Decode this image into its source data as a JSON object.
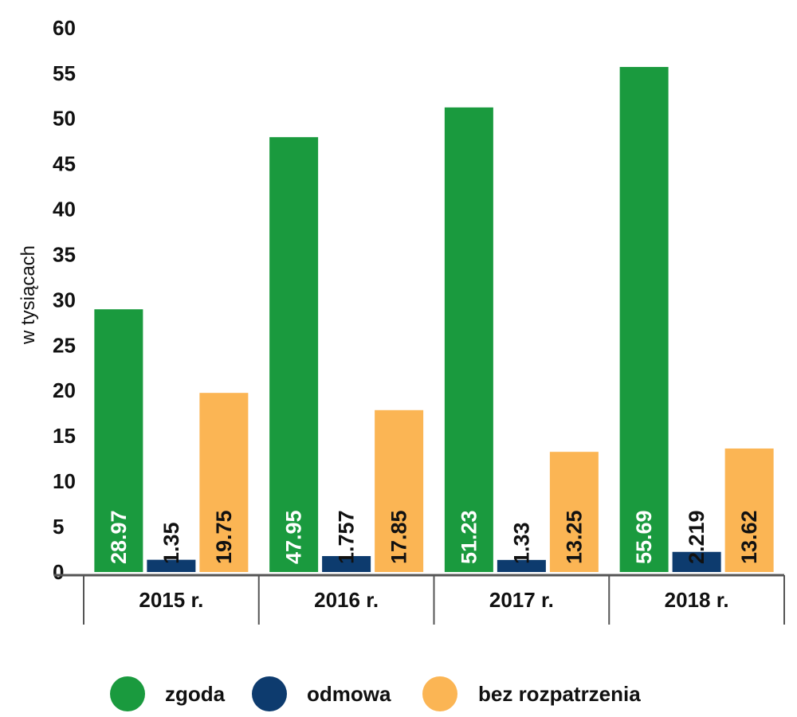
{
  "chart_data": {
    "type": "bar",
    "categories": [
      "2015 r.",
      "2016 r.",
      "2017 r.",
      "2018 r."
    ],
    "series": [
      {
        "name": "zgoda",
        "color": "#1a9a3e",
        "label_color": "#ffffff",
        "values": [
          28.97,
          47.95,
          51.23,
          55.69
        ],
        "labels": [
          "28.97",
          "47.95",
          "51.23",
          "55.69"
        ]
      },
      {
        "name": "odmowa",
        "color": "#0d3b6e",
        "label_color": "#111111",
        "values": [
          1.35,
          1.757,
          1.33,
          2.219
        ],
        "labels": [
          "1.35",
          "1.757",
          "1.33",
          "2.219"
        ]
      },
      {
        "name": "bez rozpatrzenia",
        "color": "#fbb554",
        "label_color": "#111111",
        "values": [
          19.75,
          17.85,
          13.25,
          13.62
        ],
        "labels": [
          "19.75",
          "17.85",
          "13.25",
          "13.62"
        ]
      }
    ],
    "ylabel": "w tysiącach",
    "xlabel": "",
    "ylim": [
      0,
      60
    ],
    "yticks": [
      0,
      5,
      10,
      15,
      20,
      25,
      30,
      35,
      40,
      45,
      50,
      55,
      60
    ],
    "grid": false,
    "legend_position": "bottom"
  }
}
